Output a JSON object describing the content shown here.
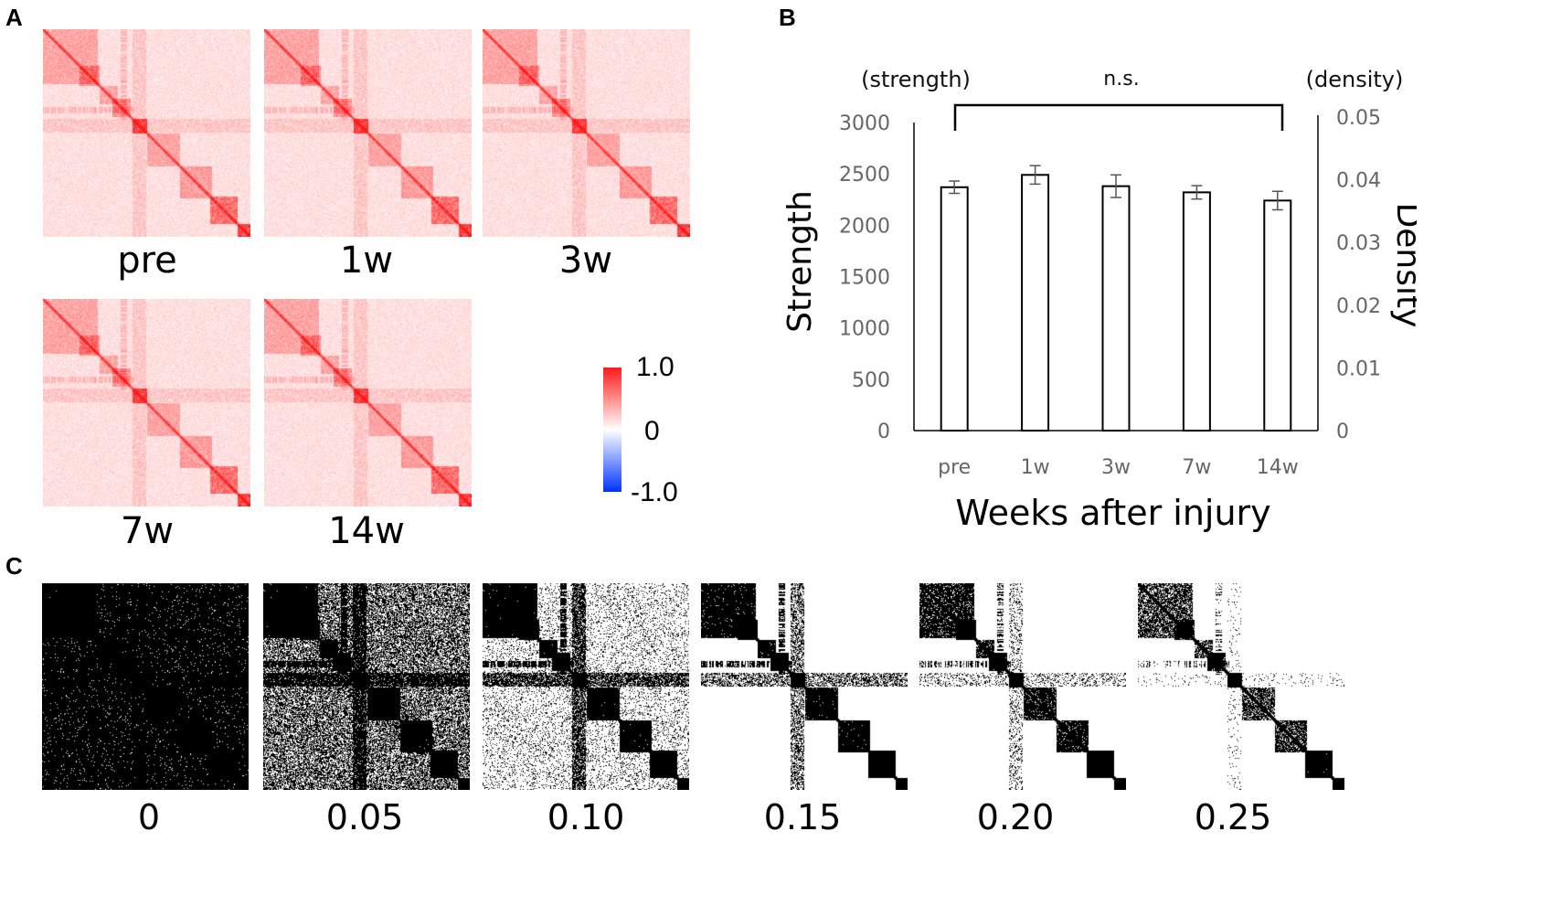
{
  "panels": {
    "a": "A",
    "b": "B",
    "c": "C"
  },
  "panel_a": {
    "labels": [
      "pre",
      "1w",
      "3w",
      "7w",
      "14w"
    ],
    "colorbar": {
      "max": "1.0",
      "mid": "0",
      "min": "-1.0",
      "color_max": "#ff1a1a",
      "color_mid": "#ffffff",
      "color_min": "#0033ff"
    }
  },
  "panel_c": {
    "thresholds": [
      "0",
      "0.05",
      "0.10",
      "0.15",
      "0.20",
      "0.25"
    ]
  },
  "chart_data": {
    "type": "bar",
    "title": "",
    "annotation": "n.s.",
    "categories": [
      "pre",
      "1w",
      "3w",
      "7w",
      "14w"
    ],
    "series": [
      {
        "name": "Strength",
        "values": [
          2370,
          2490,
          2380,
          2320,
          2240
        ],
        "errors": [
          60,
          90,
          110,
          65,
          90
        ]
      }
    ],
    "xlabel": "Weeks after injury",
    "ylabel": "Strength",
    "ylabel_right": "Density",
    "y_unit_left": "(strength)",
    "y_unit_right": "(density)",
    "ylim": [
      0,
      3000
    ],
    "ylim_right": [
      0,
      0.05
    ],
    "yticks": [
      "0",
      "500",
      "1000",
      "1500",
      "2000",
      "2500",
      "3000"
    ],
    "yticks_right": [
      "0",
      "0.01",
      "0.02",
      "0.03",
      "0.04",
      "0.05"
    ],
    "grid": false
  }
}
